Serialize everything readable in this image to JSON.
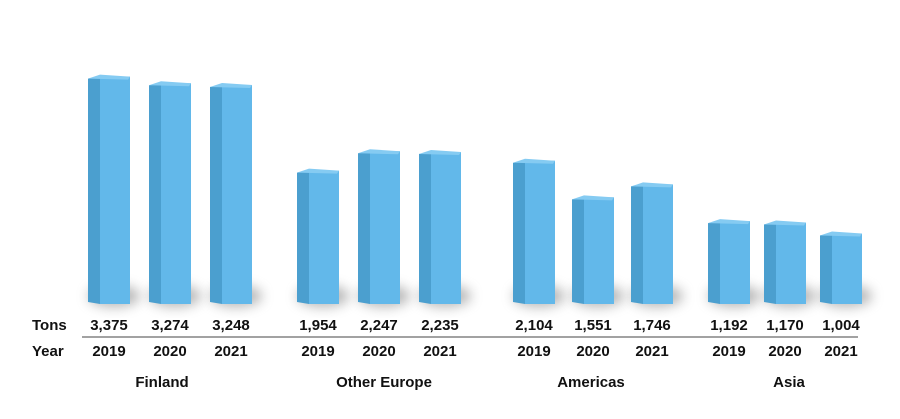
{
  "chart_data": {
    "type": "bar",
    "style": "3d",
    "row_labels": {
      "values": "Tons",
      "years": "Year"
    },
    "groups": [
      {
        "name": "Finland",
        "years": [
          "2019",
          "2020",
          "2021"
        ],
        "values": [
          3375,
          3274,
          3248
        ]
      },
      {
        "name": "Other Europe",
        "years": [
          "2019",
          "2020",
          "2021"
        ],
        "values": [
          1954,
          2247,
          2235
        ]
      },
      {
        "name": "Americas",
        "years": [
          "2019",
          "2020",
          "2021"
        ],
        "values": [
          2104,
          1551,
          1746
        ]
      },
      {
        "name": "Asia",
        "years": [
          "2019",
          "2020",
          "2021"
        ],
        "values": [
          1192,
          1170,
          1004
        ]
      }
    ],
    "value_labels": [
      [
        "3,375",
        "3,274",
        "3,248"
      ],
      [
        "1,954",
        "2,247",
        "2,235"
      ],
      [
        "2,104",
        "1,551",
        "1,746"
      ],
      [
        "1,192",
        "1,170",
        "1,004"
      ]
    ],
    "colors": {
      "bar_front": "#62b8ea",
      "bar_side": "#4b9fcf",
      "bar_top": "#85cbf2",
      "shadow": "#7a7a7a",
      "text": "#111111",
      "rule": "#444444"
    }
  }
}
